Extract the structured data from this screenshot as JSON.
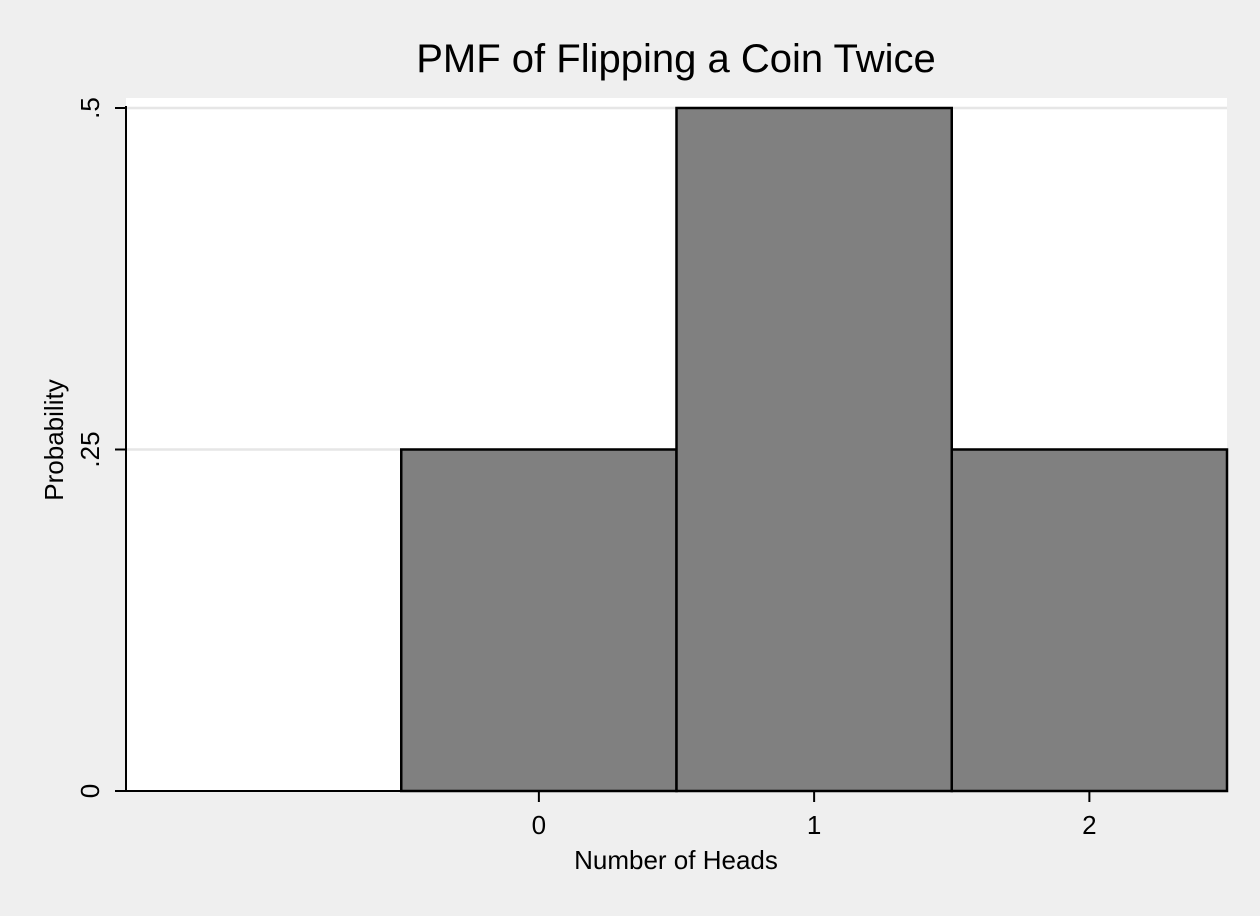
{
  "chart_data": {
    "type": "bar",
    "title": "PMF of Flipping a Coin Twice",
    "xlabel": "Number of Heads",
    "ylabel": "Probability",
    "x": [
      0,
      1,
      2
    ],
    "x_tick_labels": [
      "0",
      "1",
      "2"
    ],
    "values": [
      0.25,
      0.5,
      0.25
    ],
    "bar_width": 1,
    "xlim": [
      -1.5,
      2.5
    ],
    "ylim": [
      0,
      0.5
    ],
    "y_ticks": [
      0,
      0.25,
      0.5
    ],
    "y_tick_labels": [
      "0",
      ".25",
      ".5"
    ],
    "grid": true,
    "colors": {
      "bar_fill": "#808080",
      "bar_stroke": "#000000",
      "plot_background": "#ffffff",
      "figure_background": "#efefef",
      "gridline": "#e6e6e6"
    }
  }
}
